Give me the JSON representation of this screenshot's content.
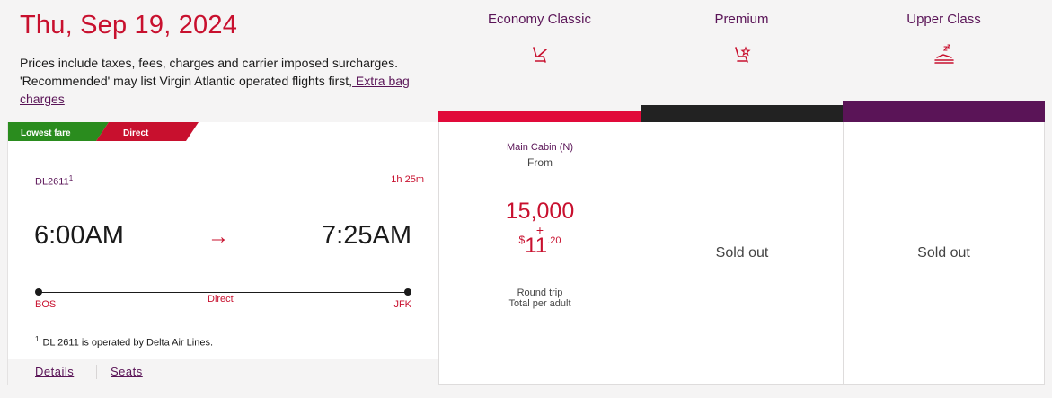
{
  "header": {
    "date": "Thu, Sep 19, 2024",
    "note": "Prices include taxes, fees, charges and carrier imposed surcharges. 'Recommended' may list Virgin Atlantic operated flights first,",
    "extra_bag_link": " Extra bag charges"
  },
  "cabins": [
    {
      "name": "Economy Classic",
      "icon": "seat-icon",
      "bar_color": "#e10a3a"
    },
    {
      "name": "Premium",
      "icon": "seat-star-icon",
      "bar_color": "#222222"
    },
    {
      "name": "Upper Class",
      "icon": "bed-icon",
      "bar_color": "#5a1457"
    }
  ],
  "flight": {
    "badges": {
      "lowest": "Lowest fare",
      "direct": "Direct",
      "lowest_color": "#2a8c1e",
      "direct_color": "#c8102e"
    },
    "flight_number": "DL2611",
    "footnote_mark": "1",
    "duration": "1h 25m",
    "departure_time": "6:00AM",
    "arrival_time": "7:25AM",
    "arrow": "→",
    "origin": "BOS",
    "destination": "JFK",
    "stops": "Direct",
    "operated_note": "DL 2611 is operated by Delta Air Lines.",
    "details_link": "Details",
    "seats_link": "Seats"
  },
  "fares": {
    "economy": {
      "cabin_class": "Main Cabin (N)",
      "from": "From",
      "points": "15,000",
      "plus": "+",
      "currency": "$",
      "amount_whole": "11",
      "amount_cents": ".20",
      "trip_type": "Round trip",
      "per": "Total per adult"
    },
    "premium": {
      "status": "Sold out"
    },
    "upper": {
      "status": "Sold out"
    }
  }
}
